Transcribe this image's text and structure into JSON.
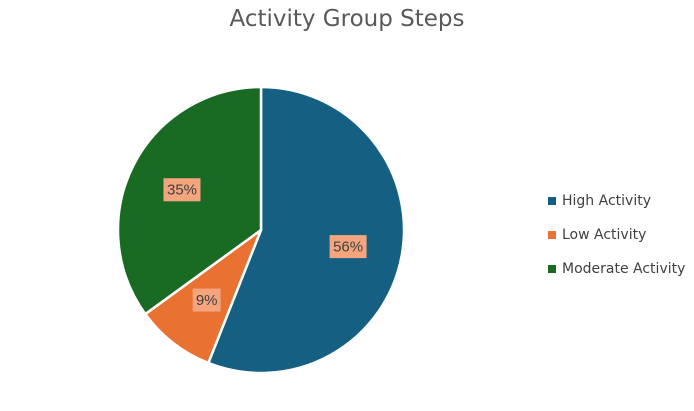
{
  "chart_data": {
    "type": "pie",
    "title": "Activity Group Steps",
    "categories": [
      "High Activity",
      "Low Activity",
      "Moderate Activity"
    ],
    "values": [
      56,
      9,
      35
    ],
    "labels": [
      "56%",
      "9%",
      "35%"
    ],
    "colors": [
      "#156082",
      "#E97132",
      "#196B24"
    ],
    "data_label_background": "#F4A57E",
    "legend_position": "right"
  }
}
